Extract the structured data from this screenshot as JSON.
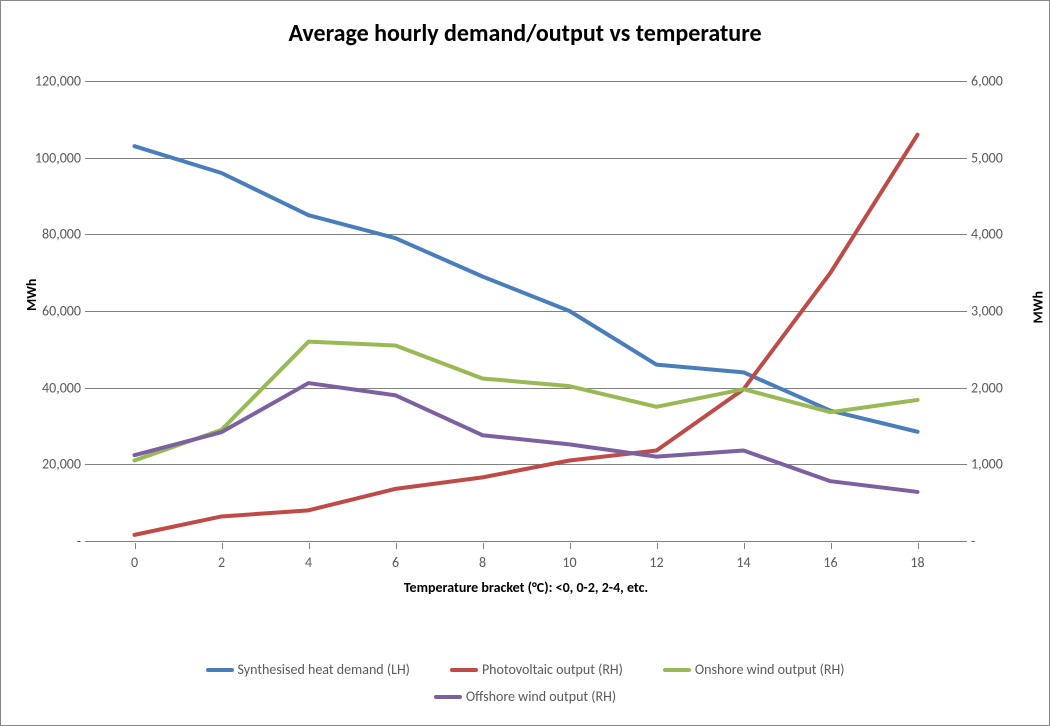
{
  "chart": {
    "type": "line",
    "title": "Average hourly demand/output vs temperature",
    "title_fontsize": 24,
    "title_color": "#000000",
    "background_color": "#ffffff",
    "border_color": "#888888",
    "grid_color": "#808080",
    "tick_color": "#595959",
    "tick_fontsize": 14,
    "axis_title_fontsize": 14,
    "line_width": 4,
    "x": {
      "title": "Temperature bracket (°C): <0, 0-2, 2-4, etc.",
      "values": [
        0,
        2,
        4,
        6,
        8,
        10,
        12,
        14,
        16,
        18
      ],
      "min": -1,
      "max": 19
    },
    "y_left": {
      "title": "MWh",
      "min": 0,
      "max": 120000,
      "tick_step": 20000,
      "tick_labels": [
        "-",
        "20,000",
        "40,000",
        "60,000",
        "80,000",
        "100,000",
        "120,000"
      ]
    },
    "y_right": {
      "title": "MWh",
      "min": 0,
      "max": 6000,
      "tick_step": 1000,
      "tick_labels": [
        "-",
        "1,000",
        "2,000",
        "3,000",
        "4,000",
        "5,000",
        "6,000"
      ]
    },
    "series": [
      {
        "name": "Synthesised heat demand (LH)",
        "color": "#4a7ebb",
        "axis": "left",
        "values": [
          103000,
          96000,
          85000,
          79000,
          69000,
          60000,
          46000,
          44000,
          34000,
          28500
        ]
      },
      {
        "name": "Photovoltaic output (RH)",
        "color": "#be4b48",
        "axis": "right",
        "values": [
          80,
          320,
          400,
          680,
          830,
          1050,
          1180,
          1980,
          3500,
          5300
        ]
      },
      {
        "name": "Onshore wind output (RH)",
        "color": "#98b954",
        "axis": "right",
        "values": [
          1050,
          1450,
          2600,
          2550,
          2120,
          2020,
          1750,
          1980,
          1680,
          1840
        ]
      },
      {
        "name": "Offshore wind output (RH)",
        "color": "#7d60a0",
        "axis": "right",
        "values": [
          1120,
          1420,
          2060,
          1900,
          1380,
          1260,
          1100,
          1180,
          780,
          640
        ]
      }
    ],
    "legend": {
      "position": "bottom"
    }
  }
}
